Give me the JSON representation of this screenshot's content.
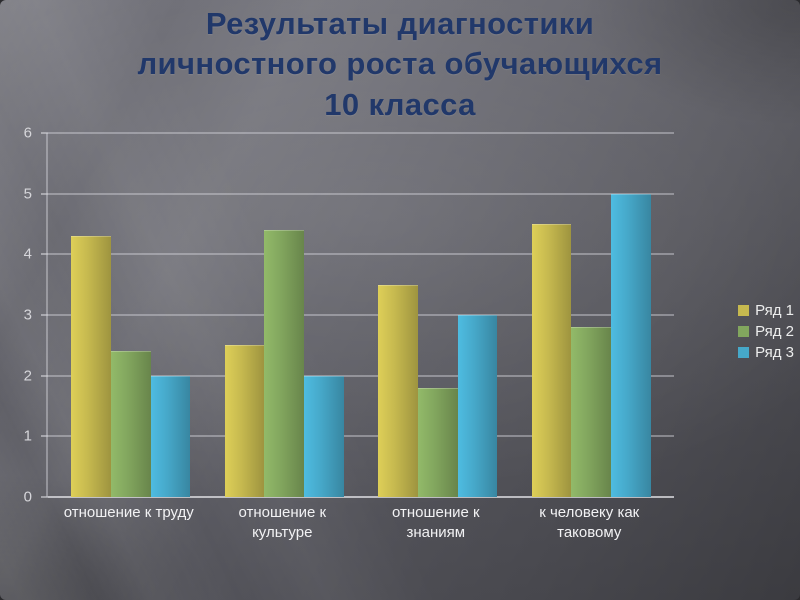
{
  "slide": {
    "title_lines": [
      "Результаты диагностики",
      "личностного роста обучающихся",
      "10 класса"
    ],
    "title_color": "#21386a"
  },
  "chart_data": {
    "type": "bar",
    "title": "Результаты диагностики личностного роста обучающихся 10 класса",
    "categories": [
      "отношение к труду",
      "отношение к культуре",
      "отношение к знаниям",
      "к человеку как таковому"
    ],
    "series": [
      {
        "name": "Ряд 1",
        "color": "#c6b94f",
        "values": [
          4.3,
          2.5,
          3.5,
          4.5
        ]
      },
      {
        "name": "Ряд 2",
        "color": "#82a65e",
        "values": [
          2.4,
          4.4,
          1.8,
          2.8
        ]
      },
      {
        "name": "Ряд 3",
        "color": "#46a8c9",
        "values": [
          2.0,
          2.0,
          3.0,
          5.0
        ]
      }
    ],
    "xlabel": "",
    "ylabel": "",
    "ylim": [
      0,
      6
    ],
    "yticks": [
      0,
      1,
      2,
      3,
      4,
      5,
      6
    ],
    "grid": true,
    "legend_position": "right"
  }
}
